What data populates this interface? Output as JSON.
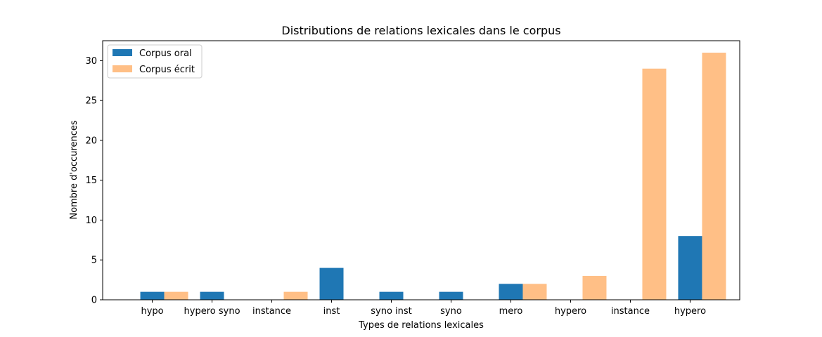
{
  "chart_data": {
    "type": "bar",
    "title": "Distributions de relations lexicales dans le corpus",
    "xlabel": "Types de relations lexicales",
    "ylabel": "Nombre d'occurences",
    "categories": [
      "hypo",
      "hypero syno",
      "instance",
      "inst",
      "syno inst",
      "syno",
      "mero",
      "hypero",
      "instance",
      "hypero"
    ],
    "series": [
      {
        "name": "Corpus oral",
        "color": "#1f77b4",
        "values": [
          1,
          1,
          0,
          4,
          1,
          1,
          2,
          0,
          0,
          8
        ]
      },
      {
        "name": "Corpus écrit",
        "color": "#ffbf86",
        "values": [
          1,
          0,
          1,
          0,
          0,
          0,
          2,
          3,
          29,
          31
        ]
      }
    ],
    "ylim": [
      0,
      32.5
    ],
    "yticks": [
      0,
      5,
      10,
      15,
      20,
      25,
      30
    ],
    "legend_position": "top-left",
    "grid": false
  }
}
